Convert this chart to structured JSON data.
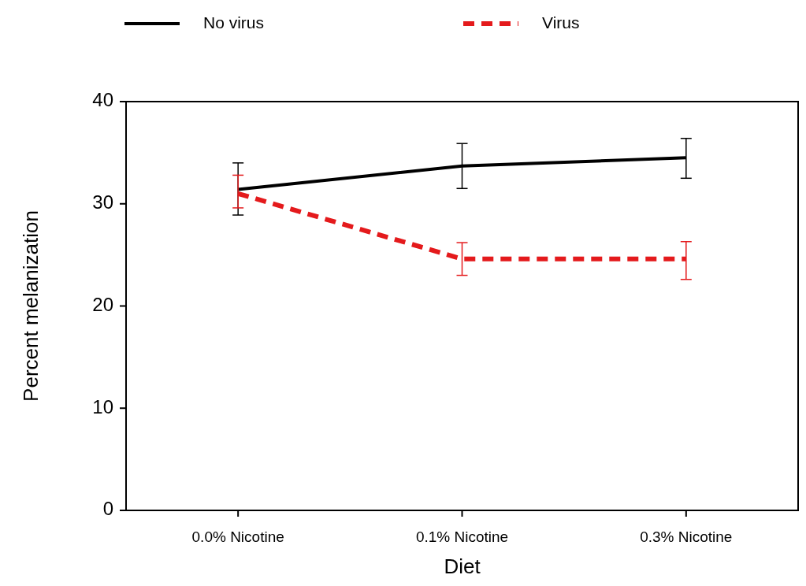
{
  "chart_data": {
    "type": "line",
    "xlabel": "Diet",
    "ylabel": "Percent melanization",
    "categories": [
      "0.0% Nicotine",
      "0.1% Nicotine",
      "0.3% Nicotine"
    ],
    "series": [
      {
        "name": "No virus",
        "color": "#000000",
        "line_style": "solid",
        "values": [
          31.4,
          33.7,
          34.5
        ],
        "errors": [
          [
            28.9,
            34.0
          ],
          [
            31.5,
            35.9
          ],
          [
            32.5,
            36.4
          ]
        ]
      },
      {
        "name": "Virus",
        "color": "#e41a1c",
        "line_style": "dashed",
        "values": [
          31.0,
          24.6,
          24.6
        ],
        "errors": [
          [
            29.6,
            32.8
          ],
          [
            23.0,
            26.2
          ],
          [
            22.6,
            26.3
          ]
        ]
      }
    ],
    "ylim": [
      0,
      40
    ],
    "yticks": [
      0,
      10,
      20,
      30,
      40
    ],
    "grid": false,
    "legend": "top",
    "marker": "none"
  }
}
